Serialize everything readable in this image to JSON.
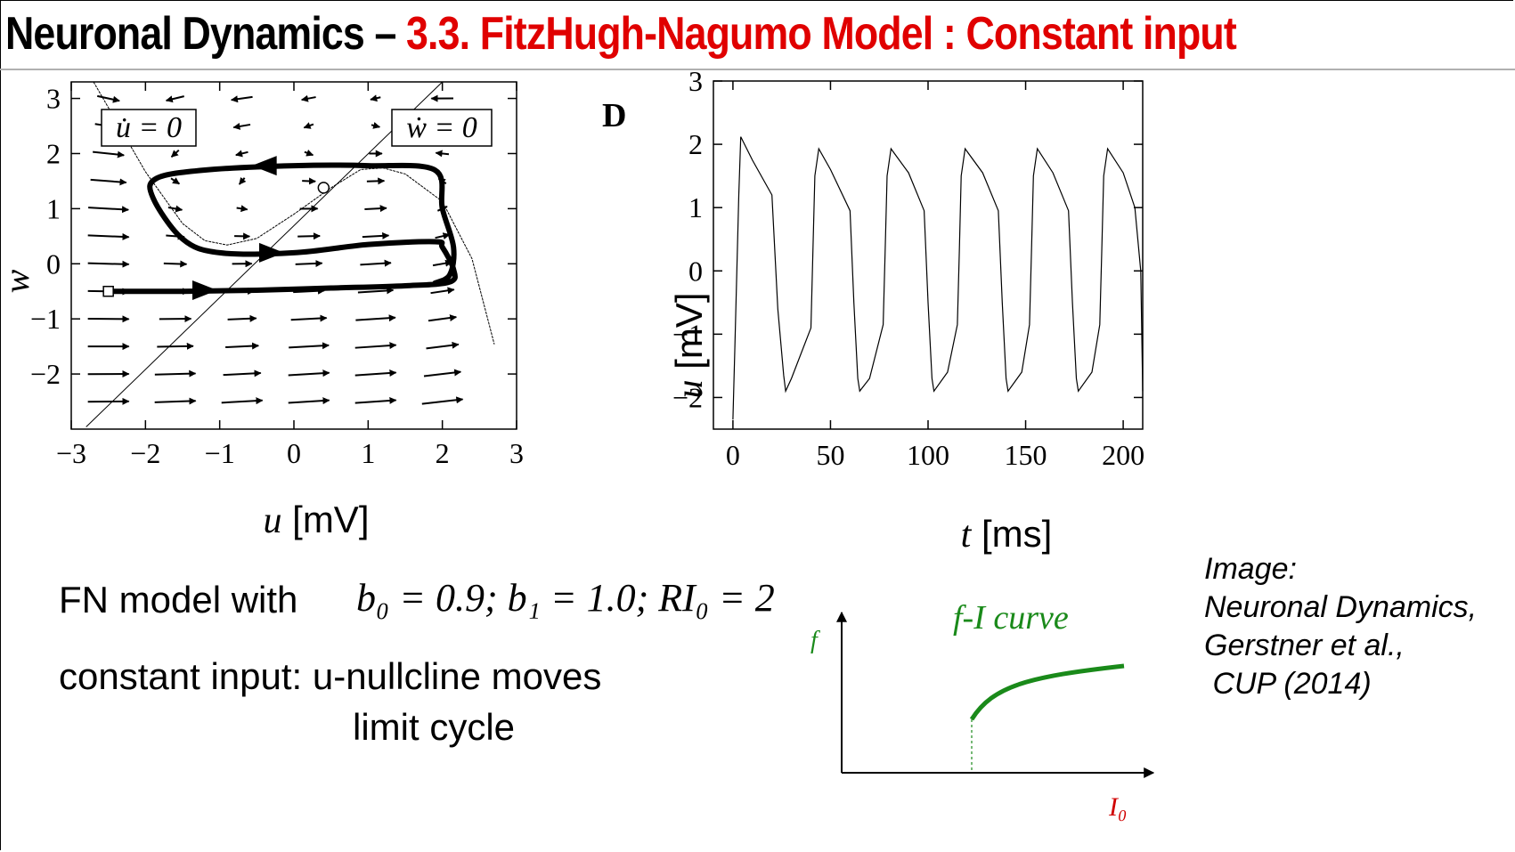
{
  "title": {
    "main": "Neuronal Dynamics – ",
    "section": "3.3.  FitzHugh-Nagumo Model : Constant input"
  },
  "colors": {
    "title_red": "#e00000",
    "fi_green": "#1a8a1a",
    "io_red": "#d00000"
  },
  "phase_plane": {
    "panel_label": "",
    "xlabel_var": "u",
    "xlabel_unit": " [mV]",
    "ylabel": "w",
    "xticks": [
      "−3",
      "−2",
      "−1",
      "0",
      "1",
      "2",
      "3"
    ],
    "yticks": [
      "3",
      "2",
      "1",
      "0",
      "−1",
      "−2"
    ],
    "u_nullcline_label": "u̇ = 0",
    "w_nullcline_label": "ẇ = 0"
  },
  "time_trace": {
    "panel_label": "D",
    "xlabel_var": "t",
    "xlabel_unit": " [ms]",
    "ylabel_var": "u",
    "ylabel_unit": " [mV]",
    "xticks": [
      "0",
      "50",
      "100",
      "150",
      "200"
    ],
    "yticks": [
      "3",
      "2",
      "1",
      "0",
      "−1",
      "−2"
    ]
  },
  "text": {
    "line1": "FN model with",
    "equation": "b₀ = 0.9; b₁ = 1.0; RI₀ = 2",
    "line2": "constant input: u-nullcline moves",
    "line3": "limit cycle"
  },
  "fi_curve": {
    "title": "f-I curve",
    "ylabel": "f",
    "xlabel": "I₀"
  },
  "credit": "Image:\nNeuronal Dynamics,\nGerstner et al.,\n CUP (2014)",
  "chart_data": [
    {
      "type": "line",
      "title": "",
      "xlabel": "u [mV]",
      "ylabel": "w",
      "xlim": [
        -3,
        3
      ],
      "ylim": [
        -3,
        3.3
      ],
      "series": [
        {
          "x": [
            -2.7,
            -2.4,
            -2.0,
            -1.5,
            -1.2,
            -0.9,
            -0.5,
            0.0,
            0.5,
            0.9,
            1.2,
            1.5,
            2.0,
            2.4,
            2.7
          ],
          "y": [
            3.3,
            2.6,
            1.67,
            0.73,
            0.42,
            0.34,
            0.46,
            0.9,
            1.38,
            1.71,
            1.74,
            1.63,
            1.13,
            0.09,
            -1.46
          ]
        },
        {
          "x": [
            -2.8,
            2.0
          ],
          "y": [
            -2.96,
            3.3
          ]
        },
        {
          "x": [
            -2.5,
            -1.5,
            -0.5,
            0.5,
            1.5,
            2.1,
            2.15,
            2.0,
            1.9,
            1.0,
            0.0,
            -1.0,
            -1.5,
            -1.9,
            -1.85,
            -1.2,
            0.0,
            1.0,
            1.9,
            2.0,
            2.15,
            2.1,
            1.9
          ],
          "y": [
            -0.5,
            -0.5,
            -0.48,
            -0.44,
            -0.4,
            -0.33,
            -0.1,
            0.3,
            0.4,
            0.35,
            0.2,
            0.2,
            0.45,
            1.2,
            1.55,
            1.7,
            1.78,
            1.78,
            1.7,
            1.0,
            0.3,
            -0.2,
            -0.35
          ]
        }
      ]
    },
    {
      "type": "line",
      "title": "",
      "xlabel": "t [ms]",
      "ylabel": "u [mV]",
      "xlim": [
        -10,
        210
      ],
      "ylim": [
        -2.5,
        3
      ],
      "series": [
        {
          "x": [
            0,
            1,
            3,
            4,
            10,
            20,
            23,
            26,
            27,
            30,
            40,
            41,
            42,
            44,
            50,
            60,
            62,
            64,
            65,
            70,
            77,
            78,
            79,
            81,
            90,
            98,
            100,
            102,
            103,
            110,
            115,
            116,
            117,
            119,
            128,
            136,
            138,
            140,
            141,
            148,
            152,
            153,
            154,
            156,
            164,
            172,
            174,
            176,
            177,
            184,
            188,
            189,
            190,
            192,
            200,
            206,
            209,
            210
          ],
          "y": [
            -2.35,
            -1.2,
            1.2,
            2.12,
            1.75,
            1.2,
            -0.6,
            -1.65,
            -1.9,
            -1.7,
            -0.9,
            0.3,
            1.5,
            1.93,
            1.6,
            0.95,
            -0.5,
            -1.7,
            -1.9,
            -1.7,
            -0.85,
            0.3,
            1.5,
            1.93,
            1.55,
            0.95,
            -0.5,
            -1.7,
            -1.9,
            -1.6,
            -0.85,
            0.3,
            1.5,
            1.93,
            1.55,
            0.95,
            -0.5,
            -1.7,
            -1.9,
            -1.6,
            -0.85,
            0.3,
            1.5,
            1.93,
            1.55,
            0.95,
            -0.5,
            -1.7,
            -1.9,
            -1.6,
            -0.85,
            0.3,
            1.5,
            1.93,
            1.55,
            1.0,
            0.0,
            -1.9
          ]
        }
      ]
    }
  ]
}
